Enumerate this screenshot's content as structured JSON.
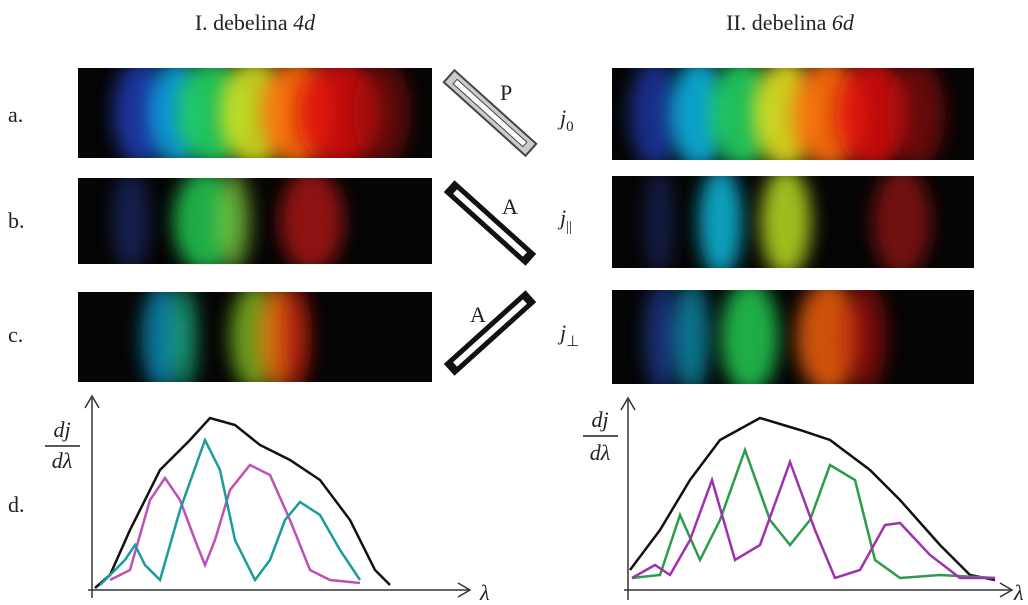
{
  "columns": [
    {
      "title": "I. debelina",
      "thickness": "4d"
    },
    {
      "title": "II. debelina",
      "thickness": "6d"
    }
  ],
  "rows": [
    "a.",
    "b.",
    "c.",
    "d."
  ],
  "polarizers": [
    "P",
    "A",
    "A"
  ],
  "currents": [
    {
      "symbol": "j",
      "subscript": "0"
    },
    {
      "symbol": "j",
      "subscript": "||"
    },
    {
      "symbol": "j",
      "subscript": "⊥"
    }
  ],
  "plot": {
    "numerator": "dj",
    "denominator": "dλ",
    "x_label": "λ"
  }
}
